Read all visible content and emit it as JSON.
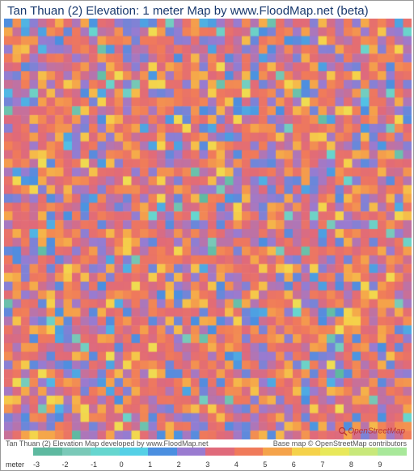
{
  "title": "Tan Thuan (2) Elevation: 1 meter Map by www.FloodMap.net (beta)",
  "footer_left": "Tan Thuan (2) Elevation Map developed by www.FloodMap.net",
  "footer_right": "Base map © OpenStreetMap contributors",
  "logo_text": "OpenStreetMap",
  "heatmap": {
    "type": "heatmap",
    "grid_cols": 48,
    "grid_rows": 48,
    "value_min": -3,
    "value_max": 9,
    "dominant_value": 3,
    "noise_amplitude": 3.5,
    "background_color": "#ffffff",
    "color_stops": [
      {
        "value": -3,
        "color": "#5eb9a0"
      },
      {
        "value": -2,
        "color": "#7ac9b8"
      },
      {
        "value": -1,
        "color": "#66d6cf"
      },
      {
        "value": 0,
        "color": "#55d0e6"
      },
      {
        "value": 1,
        "color": "#4b8fe0"
      },
      {
        "value": 2,
        "color": "#9a7bd0"
      },
      {
        "value": 3,
        "color": "#e06a7a"
      },
      {
        "value": 4,
        "color": "#f07a5a"
      },
      {
        "value": 5,
        "color": "#f5a34a"
      },
      {
        "value": 6,
        "color": "#f5d24a"
      },
      {
        "value": 7,
        "color": "#e8e85a"
      },
      {
        "value": 8,
        "color": "#c8e87a"
      },
      {
        "value": 9,
        "color": "#a8e89a"
      }
    ]
  },
  "legend": {
    "unit_label": "meter",
    "ticks": [
      "-3",
      "-2",
      "-1",
      "0",
      "1",
      "2",
      "3",
      "4",
      "5",
      "6",
      "7",
      "8",
      "9"
    ],
    "colors": [
      "#5eb9a0",
      "#7ac9b8",
      "#66d6cf",
      "#55d0e6",
      "#4b8fe0",
      "#9a7bd0",
      "#e06a7a",
      "#f07a5a",
      "#f5a34a",
      "#f5d24a",
      "#e8e85a",
      "#c8e87a",
      "#a8e89a"
    ]
  }
}
